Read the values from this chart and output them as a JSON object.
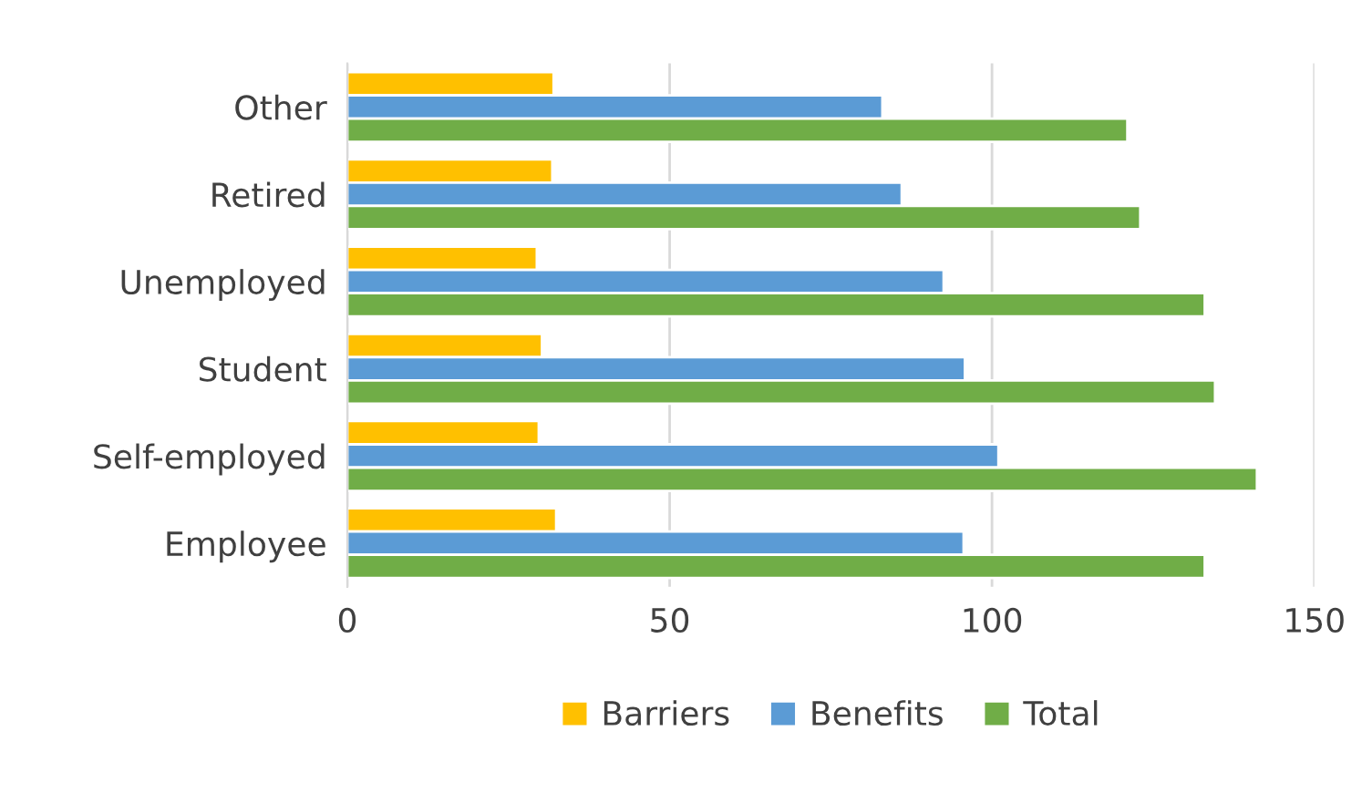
{
  "chart_data": {
    "type": "bar",
    "orientation": "horizontal",
    "categories": [
      "Other",
      "Retired",
      "Unemployed",
      "Student",
      "Self-employed",
      "Employee"
    ],
    "series": [
      {
        "name": "Barriers",
        "color": "#ffc000",
        "values": [
          32.0,
          31.8,
          29.4,
          30.2,
          29.7,
          32.4
        ]
      },
      {
        "name": "Benefits",
        "color": "#5b9bd5",
        "values": [
          83.0,
          86.0,
          92.5,
          95.8,
          101.0,
          95.6
        ]
      },
      {
        "name": "Total",
        "color": "#70ad47",
        "values": [
          121.0,
          123.0,
          133.0,
          134.6,
          141.1,
          133.0
        ]
      }
    ],
    "xlim": [
      0,
      150
    ],
    "xticks": [
      0,
      50,
      100,
      150
    ],
    "grid": "x",
    "legend": "bottom"
  }
}
